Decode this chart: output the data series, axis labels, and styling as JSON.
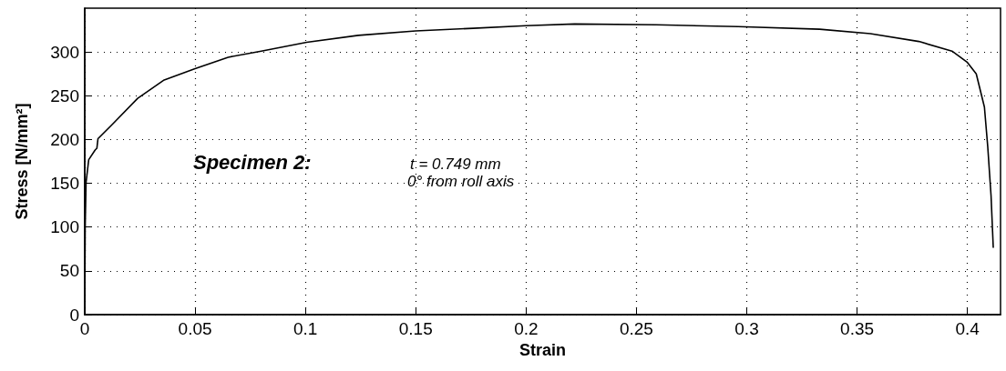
{
  "chart_data": {
    "type": "line",
    "xlabel": "Strain",
    "ylabel": "Stress [N/mm²]",
    "annotations": [
      "Specimen 2:",
      "t = 0.749 mm",
      "0° from roll axis"
    ],
    "x": [
      0,
      0.0002,
      0.0006,
      0.0018,
      0.0047,
      0.0055,
      0.006,
      0.012,
      0.024,
      0.036,
      0.05,
      0.065,
      0.08,
      0.1006,
      0.124,
      0.15,
      0.176,
      0.2,
      0.222,
      0.259,
      0.296,
      0.333,
      0.356,
      0.378,
      0.393,
      0.4,
      0.404,
      0.4077,
      0.4092,
      0.4107,
      0.4117
    ],
    "series": [
      {
        "color": "#000000",
        "values": [
          0,
          100,
          151,
          177,
          188,
          190,
          201,
          216,
          247,
          268,
          281,
          294,
          301,
          311,
          319,
          324,
          327,
          330,
          332,
          331,
          329,
          326,
          321,
          312,
          301,
          288,
          275,
          237,
          192,
          136,
          77
        ]
      }
    ],
    "xlim": [
      0,
      0.415
    ],
    "xticks": [
      0,
      0.05,
      0.1,
      0.15,
      0.2,
      0.25,
      0.3,
      0.35,
      0.4
    ],
    "ylim": [
      0,
      350
    ],
    "yticks": [
      0,
      50,
      100,
      150,
      200,
      250,
      300
    ],
    "grid": true,
    "marker": "none",
    "line_style": "solid"
  }
}
